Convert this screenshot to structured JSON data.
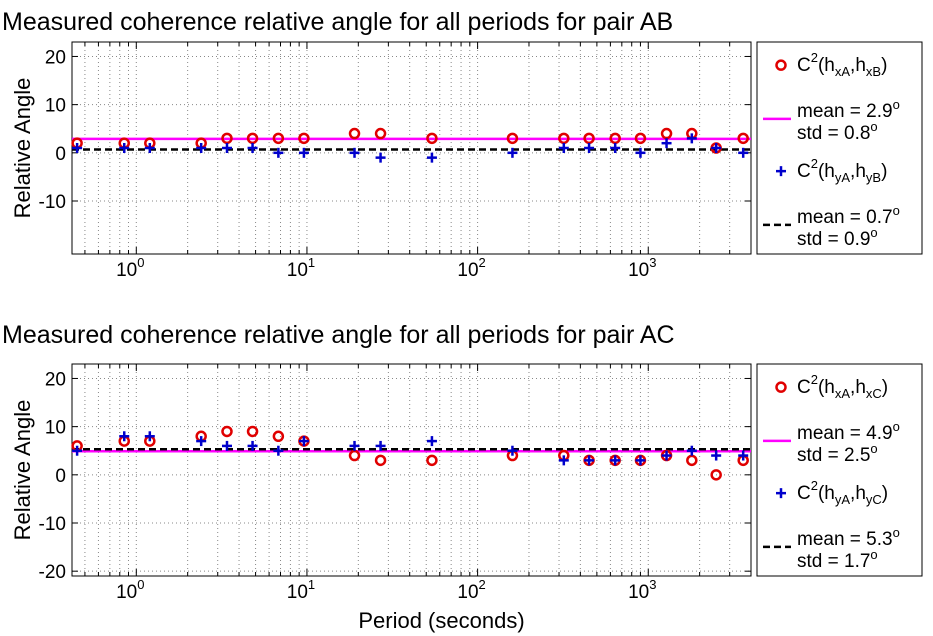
{
  "chart_data": [
    {
      "type": "scatter",
      "title": "Measured coherence relative angle for all periods for pair AB",
      "ylabel": "Relative Angle",
      "xlabel": "",
      "xscale": "log",
      "xlim": [
        0.42,
        4000
      ],
      "ylim": [
        -21,
        23
      ],
      "yticks": [
        -10,
        0,
        10,
        20
      ],
      "xticks": [
        1,
        10,
        100,
        1000
      ],
      "xtick_labels": [
        "10",
        "10",
        "10",
        "10"
      ],
      "xtick_exponents": [
        "0",
        "1",
        "2",
        "3"
      ],
      "grid": true,
      "legend_position": "outside-right",
      "x": [
        0.45,
        0.85,
        1.2,
        2.4,
        3.4,
        4.8,
        6.8,
        9.6,
        19,
        27,
        54,
        160,
        320,
        450,
        640,
        900,
        1280,
        1800,
        2500,
        3600
      ],
      "series": [
        {
          "name": "C2(hxA,hxB)",
          "marker": "circle",
          "color": "#e00000",
          "values": [
            2,
            2,
            2,
            2,
            3,
            3,
            3,
            3,
            4,
            4,
            3,
            3,
            3,
            3,
            3,
            3,
            4,
            4,
            1,
            3
          ]
        },
        {
          "name": "C2(hyA,hyB)",
          "marker": "plus",
          "color": "#0000cc",
          "values": [
            1,
            1,
            1,
            1,
            1,
            1,
            0,
            0,
            0,
            -1,
            -1,
            0,
            1,
            1,
            1,
            0,
            2,
            3,
            1,
            0
          ]
        }
      ],
      "lines": [
        {
          "value": 2.9,
          "color": "#ff00ff",
          "style": "solid"
        },
        {
          "value": 0.7,
          "color": "#000000",
          "style": "dashed"
        }
      ],
      "legend": {
        "s1_main": "C",
        "s1_sup": "2",
        "s1_a": "(h",
        "s1_a_sub": "xA",
        "s1_b": ",h",
        "s1_b_sub": "xB",
        "s1_c": ")",
        "m1_mean": "mean = 2.9",
        "m1_std": "std = 0.8",
        "s2_main": "C",
        "s2_sup": "2",
        "s2_a": "(h",
        "s2_a_sub": "yA",
        "s2_b": ",h",
        "s2_b_sub": "yB",
        "s2_c": ")",
        "m2_mean": "mean = 0.7",
        "m2_std": "std = 0.9",
        "deg": "o"
      }
    },
    {
      "type": "scatter",
      "title": "Measured coherence relative angle for all periods for pair AC",
      "ylabel": "Relative Angle",
      "xlabel": "Period (seconds)",
      "xscale": "log",
      "xlim": [
        0.42,
        4000
      ],
      "ylim": [
        -21,
        23
      ],
      "yticks": [
        -20,
        -10,
        0,
        10,
        20
      ],
      "xticks": [
        1,
        10,
        100,
        1000
      ],
      "xtick_labels": [
        "10",
        "10",
        "10",
        "10"
      ],
      "xtick_exponents": [
        "0",
        "1",
        "2",
        "3"
      ],
      "grid": true,
      "legend_position": "outside-right",
      "x": [
        0.45,
        0.85,
        1.2,
        2.4,
        3.4,
        4.8,
        6.8,
        9.6,
        19,
        27,
        54,
        160,
        320,
        450,
        640,
        900,
        1280,
        1800,
        2500,
        3600
      ],
      "series": [
        {
          "name": "C2(hxA,hxC)",
          "marker": "circle",
          "color": "#e00000",
          "values": [
            6,
            7,
            7,
            8,
            9,
            9,
            8,
            7,
            4,
            3,
            3,
            4,
            4,
            3,
            3,
            3,
            4,
            3,
            0,
            3
          ]
        },
        {
          "name": "C2(hyA,hyC)",
          "marker": "plus",
          "color": "#0000cc",
          "values": [
            5,
            8,
            8,
            7,
            6,
            6,
            5,
            7,
            6,
            6,
            7,
            5,
            3,
            3,
            3,
            3,
            4,
            5,
            4,
            4
          ]
        }
      ],
      "lines": [
        {
          "value": 4.9,
          "color": "#ff00ff",
          "style": "solid"
        },
        {
          "value": 5.3,
          "color": "#000000",
          "style": "dashed"
        }
      ],
      "legend": {
        "s1_main": "C",
        "s1_sup": "2",
        "s1_a": "(h",
        "s1_a_sub": "xA",
        "s1_b": ",h",
        "s1_b_sub": "xC",
        "s1_c": ")",
        "m1_mean": "mean = 4.9",
        "m1_std": "std = 2.5",
        "s2_main": "C",
        "s2_sup": "2",
        "s2_a": "(h",
        "s2_a_sub": "yA",
        "s2_b": ",h",
        "s2_b_sub": "yC",
        "s2_c": ")",
        "m2_mean": "mean = 5.3",
        "m2_std": "std = 1.7",
        "deg": "o"
      }
    }
  ]
}
